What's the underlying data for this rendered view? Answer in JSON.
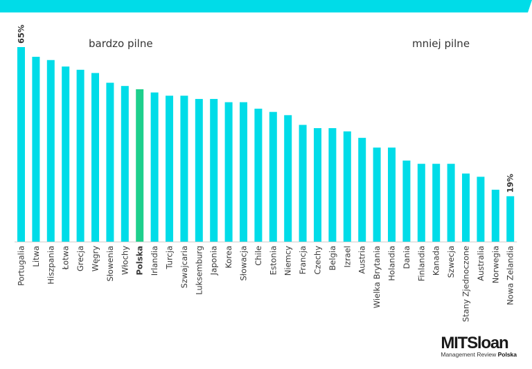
{
  "colors": {
    "bar": "#00dce8",
    "highlight": "#1ecf8c",
    "banner": "#00dce8",
    "axis": "#cfcfcf"
  },
  "region_labels": {
    "left": "bardzo pilne",
    "right": "mniej pilne"
  },
  "logo": {
    "title": "MITSloan",
    "subtitle_prefix": "Management Review",
    "subtitle_bold": "Polska"
  },
  "chart_data": {
    "type": "bar",
    "title": "",
    "xlabel": "",
    "ylabel": "",
    "value_unit": "%",
    "ylim": [
      5,
      65
    ],
    "grid": false,
    "categories": [
      "Portugalia",
      "Litwa",
      "Hiszpania",
      "Łotwa",
      "Grecja",
      "Węgry",
      "Słowenia",
      "Włochy",
      "Polska",
      "Irlandia",
      "Turcja",
      "Szwajcaria",
      "Luksemburg",
      "Japonia",
      "Korea",
      "Słowacja",
      "Chile",
      "Estonia",
      "Niemcy",
      "Francja",
      "Czechy",
      "Belgia",
      "Izrael",
      "Austria",
      "Wielka Brytania",
      "Holandia",
      "Dania",
      "Finlandia",
      "Kanada",
      "Szwecja",
      "Stany Zjednoczone",
      "Australia",
      "Norwegia",
      "Nowa Zelandia"
    ],
    "values": [
      65,
      62,
      61,
      59,
      58,
      57,
      54,
      53,
      52,
      51,
      50,
      50,
      49,
      49,
      48,
      48,
      46,
      45,
      44,
      41,
      40,
      40,
      39,
      37,
      34,
      34,
      30,
      29,
      29,
      29,
      26,
      25,
      21,
      19
    ],
    "highlighted": [
      "Polska"
    ],
    "data_labels": [
      {
        "category": "Portugalia",
        "text": "65%"
      },
      {
        "category": "Nowa Zelandia",
        "text": "19%"
      }
    ]
  }
}
